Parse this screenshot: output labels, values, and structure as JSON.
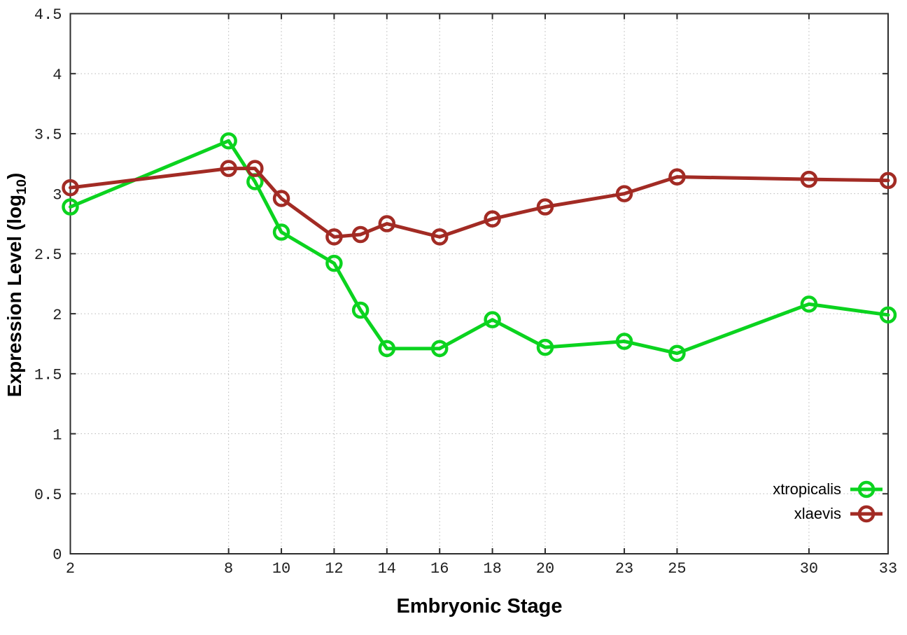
{
  "background": "#ffffff",
  "colors": {
    "axis_border": "#2d2d2d",
    "grid": "#b8b8b8",
    "tick_text": "#1f1f1f",
    "label_text": "#000000"
  },
  "chart_data": {
    "type": "line",
    "x": [
      2,
      8,
      9,
      10,
      12,
      13,
      14,
      16,
      18,
      20,
      23,
      25,
      30,
      33
    ],
    "series": [
      {
        "name": "xtropicalis",
        "color": "#0bd31f",
        "marker": "open-circle",
        "values": [
          2.89,
          3.44,
          3.1,
          2.68,
          2.42,
          2.03,
          1.71,
          1.71,
          1.95,
          1.72,
          1.77,
          1.67,
          2.08,
          1.99
        ]
      },
      {
        "name": "xlaevis",
        "color": "#a22b24",
        "marker": "open-circle",
        "values": [
          3.05,
          3.21,
          3.21,
          2.96,
          2.64,
          2.66,
          2.75,
          2.64,
          2.79,
          2.89,
          3.0,
          3.14,
          3.12,
          3.11
        ]
      }
    ],
    "title": "",
    "xlabel": "Embryonic Stage",
    "ylabel": "Expression Level (log10)",
    "ylabel_parts": {
      "prefix": "Expression Level (log",
      "sub": "10",
      "suffix": ")"
    },
    "xlim": [
      2,
      33
    ],
    "ylim": [
      0,
      4.5
    ],
    "x_ticks": [
      2,
      8,
      10,
      12,
      14,
      16,
      18,
      20,
      23,
      25,
      30,
      33
    ],
    "y_ticks": [
      0,
      0.5,
      1,
      1.5,
      2,
      2.5,
      3,
      3.5,
      4,
      4.5
    ],
    "grid": true,
    "legend_position": "bottom-right"
  }
}
